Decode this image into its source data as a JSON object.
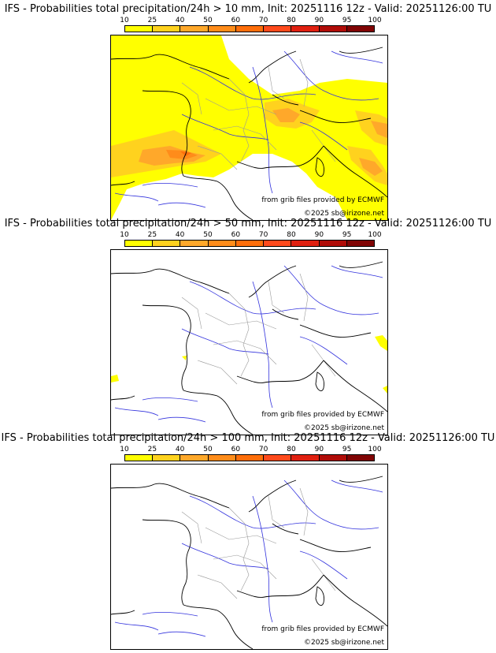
{
  "panels": [
    {
      "title": "IFS - Probabilities total precipitation/24h > 10 mm, Init: 20251116 12z - Valid: 20251126:00 TU",
      "threshold": "> 10 mm",
      "source_note": "from grib files provided by ECMWF",
      "copyright": "©2025 sb@irizone.net"
    },
    {
      "title": "IFS - Probabilities total precipitation/24h > 50 mm, Init: 20251116 12z - Valid: 20251126:00 TU",
      "threshold": "> 50 mm",
      "source_note": "from grib files provided by ECMWF",
      "copyright": "©2025 sb@irizone.net"
    },
    {
      "title": "IFS - Probabilities total precipitation/24h > 100 mm, Init: 20251116 12z - Valid: 20251126:00 TU",
      "threshold": "> 100 mm",
      "source_note": "from grib files provided by ECMWF",
      "copyright": "©2025 sb@irizone.net"
    }
  ],
  "colorbar": {
    "ticks": [
      "10",
      "25",
      "40",
      "50",
      "60",
      "70",
      "80",
      "90",
      "95",
      "100"
    ],
    "colors": [
      "#ffff00",
      "#ffd21e",
      "#ffa82a",
      "#ff8c1a",
      "#ff6e0a",
      "#ff4a1c",
      "#e02010",
      "#b00c08",
      "#800404"
    ]
  },
  "map_colors": {
    "coast": "#000000",
    "rivers": "#3333dd",
    "borders": "#999999",
    "p10": "#ffff00",
    "p25": "#ffd21e",
    "p40": "#ffa82a",
    "p50": "#ff8c1a",
    "p60": "#ff6e0a"
  }
}
